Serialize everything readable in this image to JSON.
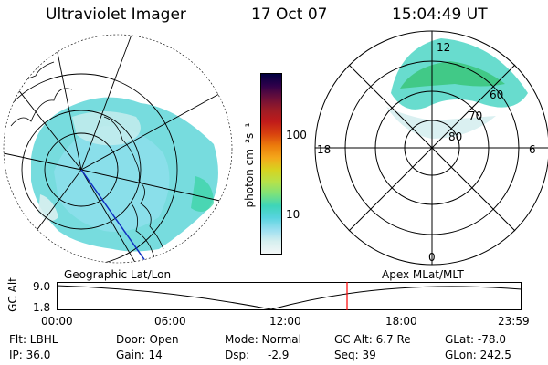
{
  "header": {
    "title": "Ultraviolet Imager",
    "date": "17 Oct 07",
    "time": "15:04:49 UT"
  },
  "colorbar": {
    "unit_label": "photon cm⁻²s⁻¹",
    "ticks": [
      {
        "label": "100"
      },
      {
        "label": "10"
      }
    ],
    "colors": [
      "#000040",
      "#30004a",
      "#6a0f3a",
      "#9c1c26",
      "#c11b1a",
      "#d8420f",
      "#ec7c0c",
      "#f4a81a",
      "#d7d320",
      "#b6e24a",
      "#7ee27a",
      "#3ed5b8",
      "#58d4df",
      "#9adff0",
      "#d7efef",
      "#f3f7f7"
    ]
  },
  "left_map": {
    "label": "Geographic Lat/Lon"
  },
  "right_map": {
    "label": "Apex MLat/MLT",
    "lat_labels": [
      "60",
      "70",
      "80"
    ],
    "mlt_labels": [
      "12",
      "18",
      "6",
      "0"
    ]
  },
  "timeline": {
    "axis_label": "GC Alt",
    "y_values": [
      "9.0",
      "1.8"
    ],
    "time_ticks": [
      "00:00",
      "06:00",
      "12:00",
      "18:00",
      "23:59"
    ],
    "current_marker_time": "15:04:49",
    "marker_color": "#ff0000"
  },
  "info": {
    "flt": "Flt: LBHL",
    "ip": "IP: 36.0",
    "door": "Door: Open",
    "gain": "Gain: 14",
    "mode": "Mode: Normal",
    "dsp_label": "Dsp:",
    "dsp_value": "-2.9",
    "gcalt": "GC Alt: 6.7 Re",
    "seq": "Seq: 39",
    "glat": "GLat: -78.0",
    "glon": "GLon: 242.5"
  }
}
